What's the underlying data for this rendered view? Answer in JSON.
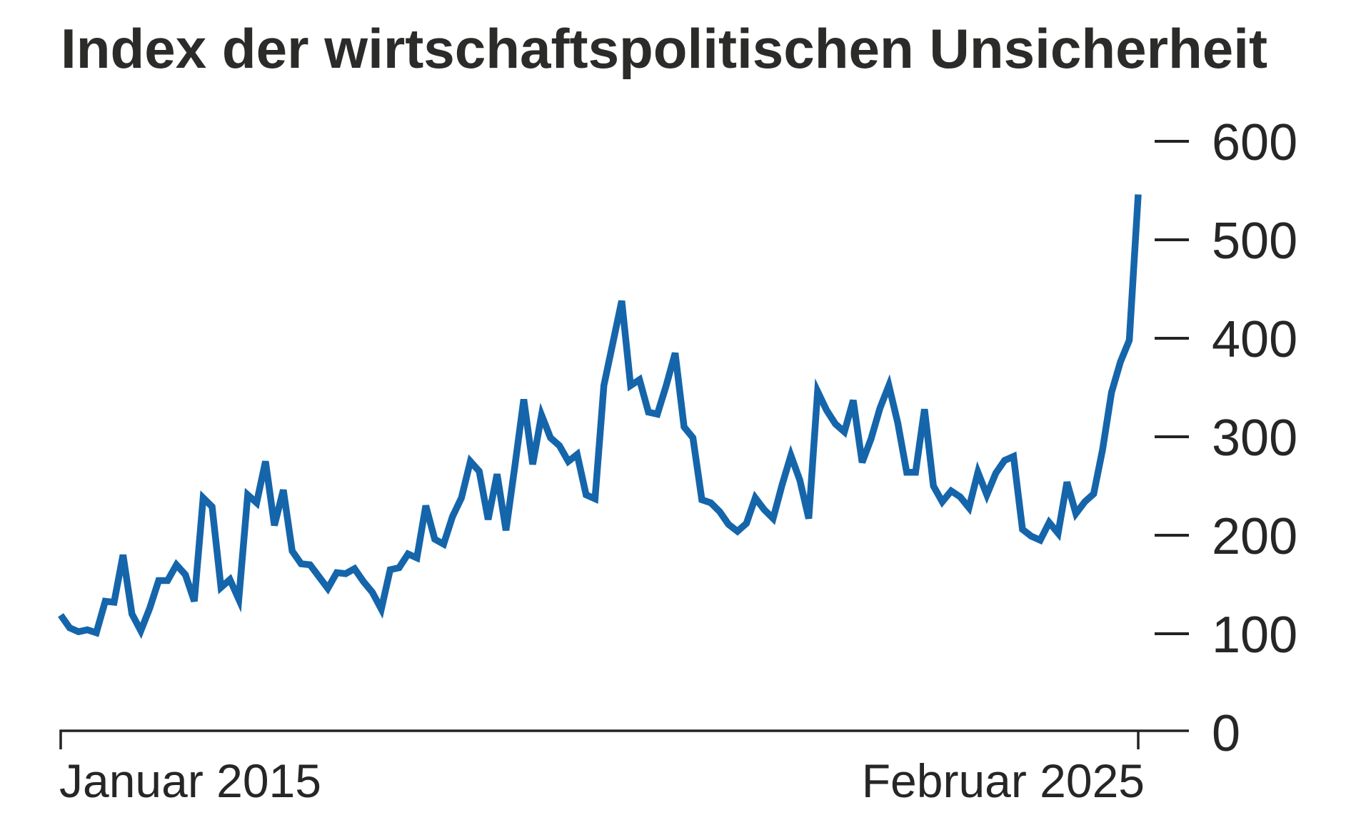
{
  "chart_data": {
    "type": "line",
    "title": "Index der wirtschaftspolitischen Unsicherheit",
    "x_start_label": "Januar 2015",
    "x_end_label": "Februar 2025",
    "x_range_months": [
      "2015-01",
      "2025-02"
    ],
    "y_ticks": [
      600,
      500,
      400,
      300,
      200,
      100,
      0
    ],
    "ylim": [
      0,
      620
    ],
    "grid": "right-side tick dashes only, no gridlines",
    "legend_position": "none",
    "series": [
      {
        "name": "Index der wirtschaftspolitischen Unsicherheit",
        "color": "#1565ab",
        "x_unit": "month",
        "values": [
          119,
          106,
          102,
          104,
          101,
          133,
          132,
          180,
          120,
          103,
          126,
          154,
          154,
          170,
          160,
          133,
          238,
          229,
          147,
          155,
          135,
          241,
          233,
          275,
          210,
          246,
          184,
          171,
          170,
          158,
          146,
          162,
          161,
          166,
          153,
          142,
          125,
          165,
          167,
          181,
          177,
          230,
          196,
          191,
          219,
          238,
          275,
          265,
          216,
          262,
          205,
          270,
          338,
          272,
          322,
          299,
          291,
          275,
          282,
          241,
          237,
          352,
          395,
          438,
          352,
          358,
          325,
          323,
          352,
          385,
          310,
          299,
          236,
          233,
          224,
          211,
          204,
          212,
          238,
          226,
          217,
          251,
          281,
          256,
          217,
          346,
          327,
          313,
          305,
          337,
          274,
          298,
          329,
          352,
          314,
          264,
          264,
          328,
          250,
          234,
          245,
          239,
          228,
          264,
          241,
          263,
          276,
          280,
          206,
          199,
          195,
          213,
          202,
          254,
          222,
          234,
          242,
          287,
          345,
          376,
          398,
          546
        ]
      }
    ]
  },
  "colors": {
    "background": "#ffffff",
    "line": "#1565ab",
    "axis": "#232323",
    "tick": "#232323",
    "title_text": "#2b2b29",
    "label_text": "#262626"
  }
}
